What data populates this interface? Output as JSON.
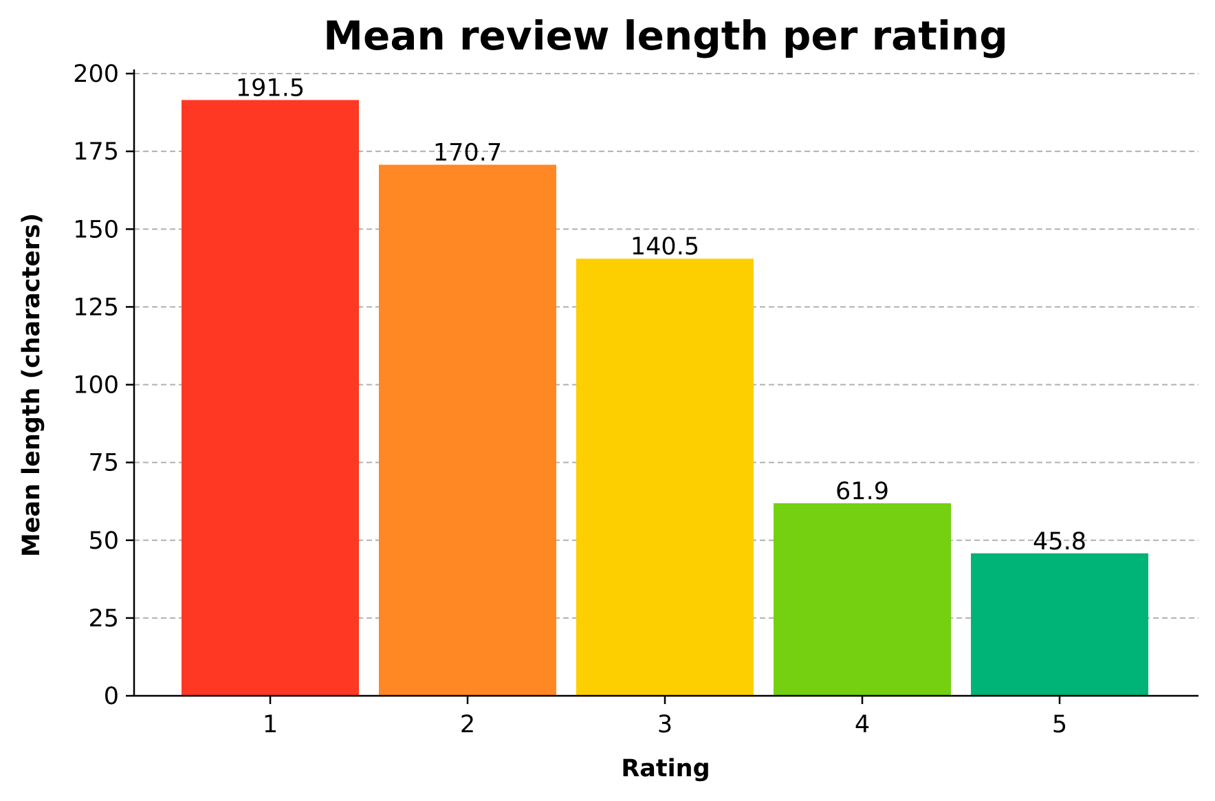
{
  "chart_data": {
    "type": "bar",
    "title": "Mean review length per rating",
    "xlabel": "Rating",
    "ylabel": "Mean length (characters)",
    "categories": [
      "1",
      "2",
      "3",
      "4",
      "5"
    ],
    "values": [
      191.5,
      170.7,
      140.5,
      61.9,
      45.8
    ],
    "data_labels": [
      "191.5",
      "170.7",
      "140.5",
      "61.9",
      "45.8"
    ],
    "colors": [
      "#ff3824",
      "#ff8724",
      "#fdcf00",
      "#74d010",
      "#00b377"
    ],
    "ylim": [
      0,
      200
    ],
    "yticks": [
      0,
      25,
      50,
      75,
      100,
      125,
      150,
      175,
      200
    ],
    "grid": "horizontal dashed",
    "legend": "none"
  }
}
